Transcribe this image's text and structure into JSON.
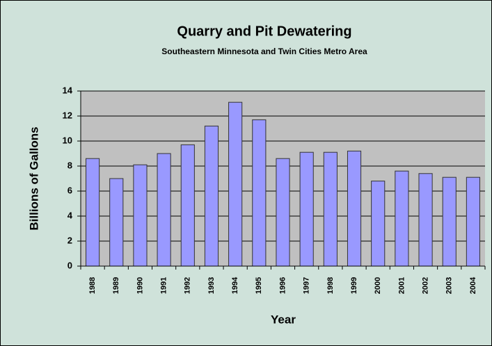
{
  "chart_data": {
    "type": "bar",
    "title": "Quarry and Pit Dewatering",
    "subtitle": "Southeastern Minnesota and Twin Cities Metro Area",
    "x_label": "Year",
    "y_label": "Billions of Gallons",
    "categories": [
      "1988",
      "1989",
      "1990",
      "1991",
      "1992",
      "1993",
      "1994",
      "1995",
      "1996",
      "1997",
      "1998",
      "1999",
      "2000",
      "2001",
      "2002",
      "2003",
      "2004"
    ],
    "values": [
      8.6,
      7.0,
      8.1,
      9.0,
      9.7,
      11.2,
      13.1,
      11.7,
      8.6,
      9.1,
      9.1,
      9.2,
      6.8,
      7.6,
      7.4,
      7.1,
      7.1
    ],
    "color": "#9999ff",
    "ylim": [
      0,
      14
    ],
    "yticks": [
      0,
      2,
      4,
      6,
      8,
      10,
      12,
      14
    ],
    "grid": true
  }
}
